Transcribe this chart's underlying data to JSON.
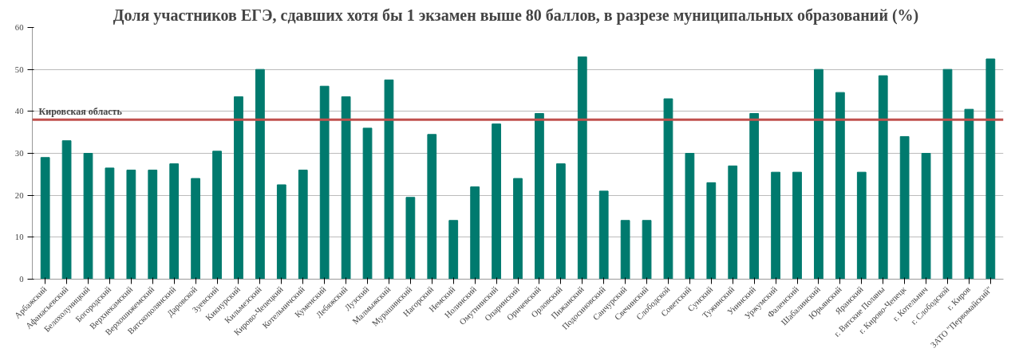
{
  "chart_data": {
    "type": "bar",
    "title": "Доля участников ЕГЭ, сдавших хотя бы 1 экзамен выше 80 баллов, в разрезе муниципальных  образований (%)",
    "categories": [
      "Арбажский",
      "Афанасьевский",
      "Белохолуницкий",
      "Богородский",
      "Верхнекамский",
      "Верхошижемский",
      "Вятскополянский",
      "Даровской",
      "Зуевский",
      "Кикнурский",
      "Кильмезский",
      "Кирово-Чепецкий",
      "Котельничский",
      "Куменский",
      "Лебяжский",
      "Лузский",
      "Малмыжский",
      "Мурашинский",
      "Нагорский",
      "Немский",
      "Нолинский",
      "Омутнинский",
      "Опаринский",
      "Оричевский",
      "Орловский",
      "Пижанский",
      "Подосиновский",
      "Санчурский",
      "Свечинский",
      "Слободской",
      "Советский",
      "Сунский",
      "Тужинский",
      "Унинский",
      "Уржумский",
      "Фаленский",
      "Шабалинский",
      "Юрьянский",
      "Яранский",
      "г. Вятские Поляны",
      "г. Кирово-Чепецк",
      "г. Котельнич",
      "г. Слободской",
      "г. Киров",
      "ЗАТО \"Первомайский\""
    ],
    "values": [
      29,
      33,
      30,
      26.5,
      26,
      26,
      27.5,
      24,
      30.5,
      43.5,
      50,
      22.5,
      26,
      46,
      43.5,
      36,
      47.5,
      19.5,
      34.5,
      14,
      22,
      37,
      24,
      39.5,
      27.5,
      53,
      21,
      14,
      14,
      43,
      30,
      23,
      27,
      39.5,
      25.5,
      25.5,
      50,
      44.5,
      25.5,
      48.5,
      34,
      30,
      50,
      40.5,
      52.5
    ],
    "color": "#007a6e",
    "ylim": [
      0,
      60
    ],
    "yticks": [
      0,
      10,
      20,
      30,
      40,
      50,
      60
    ],
    "grid": "y",
    "ref_lines": [
      {
        "axis": "y",
        "value": 38,
        "label": "Кировская область",
        "color": "#c0504d"
      }
    ]
  }
}
